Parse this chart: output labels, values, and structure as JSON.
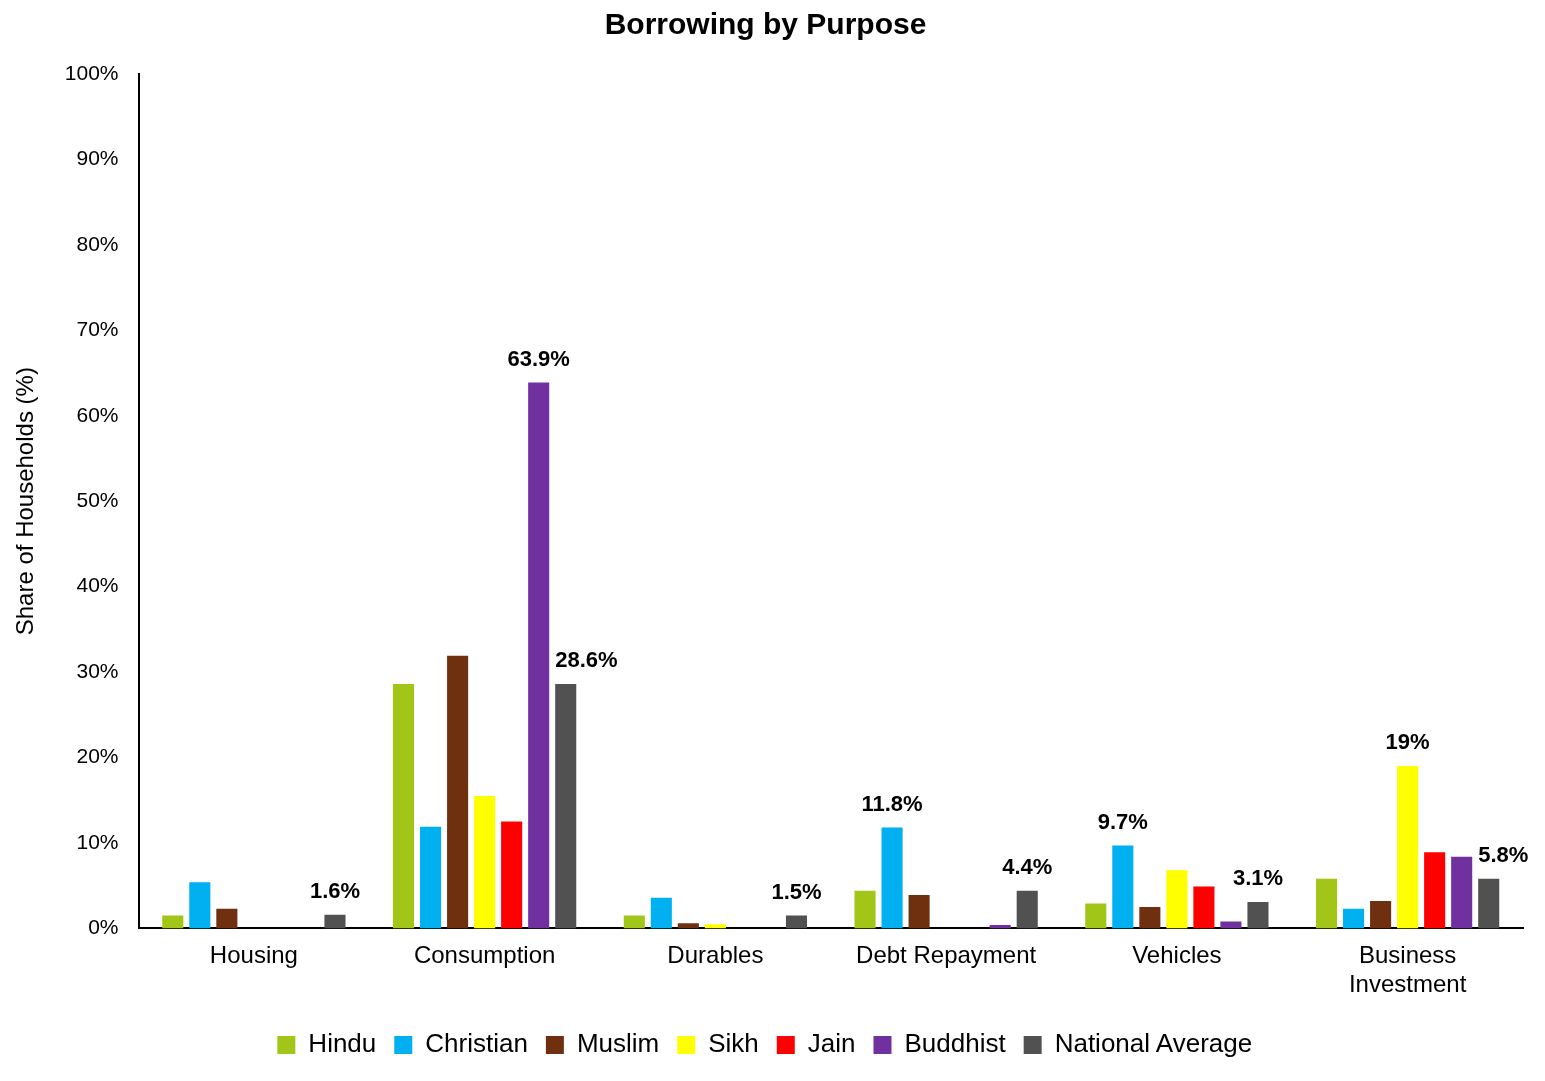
{
  "chart_data": {
    "type": "bar",
    "title": "Borrowing by Purpose",
    "ylabel": "Share of Households (%)",
    "categories": [
      "Housing",
      "Consumption",
      "Durables",
      "Debt Repayment",
      "Vehicles",
      "Business Investment"
    ],
    "series": [
      {
        "name": "Hindu",
        "color": "#a2c617",
        "values": [
          1.5,
          28.6,
          1.5,
          4.4,
          2.9,
          5.8
        ]
      },
      {
        "name": "Christian",
        "color": "#00b0f0",
        "values": [
          5.4,
          11.9,
          3.6,
          11.8,
          9.7,
          2.3
        ],
        "value_labels": [
          null,
          null,
          null,
          "11.8%",
          "9.7%",
          null
        ]
      },
      {
        "name": "Muslim",
        "color": "#6f3010",
        "values": [
          2.3,
          31.9,
          0.6,
          3.9,
          2.5,
          3.2
        ]
      },
      {
        "name": "Sikh",
        "color": "#ffff00",
        "values": [
          null,
          15.5,
          0.5,
          null,
          6.8,
          19
        ],
        "value_labels": [
          null,
          null,
          null,
          null,
          null,
          "19%"
        ]
      },
      {
        "name": "Jain",
        "color": "#ff0000",
        "values": [
          0,
          12.5,
          0,
          0,
          4.9,
          8.9
        ]
      },
      {
        "name": "Buddhist",
        "color": "#7030a0",
        "values": [
          0,
          63.9,
          null,
          0.4,
          0.8,
          8.4
        ],
        "value_labels": [
          null,
          "63.9%",
          null,
          null,
          null,
          null
        ]
      },
      {
        "name": "National Average",
        "color": "#515151",
        "values": [
          1.6,
          28.6,
          1.5,
          4.4,
          3.1,
          5.8
        ],
        "value_labels": [
          "1.6%",
          "28.6%",
          "1.5%",
          "4.4%",
          "3.1%",
          "5.8%"
        ]
      }
    ],
    "ylim": [
      0,
      100
    ],
    "yticks": [
      {
        "value": 0,
        "label": "0%"
      },
      {
        "value": 10,
        "label": "10%"
      },
      {
        "value": 20,
        "label": "20%"
      },
      {
        "value": 30,
        "label": "30%"
      },
      {
        "value": 40,
        "label": "40%"
      },
      {
        "value": 50,
        "label": "50%"
      },
      {
        "value": 60,
        "label": "60%"
      },
      {
        "value": 70,
        "label": "70%"
      },
      {
        "value": 80,
        "label": "80%"
      },
      {
        "value": 90,
        "label": "90%"
      },
      {
        "value": 100,
        "label": "100%"
      }
    ],
    "grid": false,
    "legend": "bottom"
  }
}
